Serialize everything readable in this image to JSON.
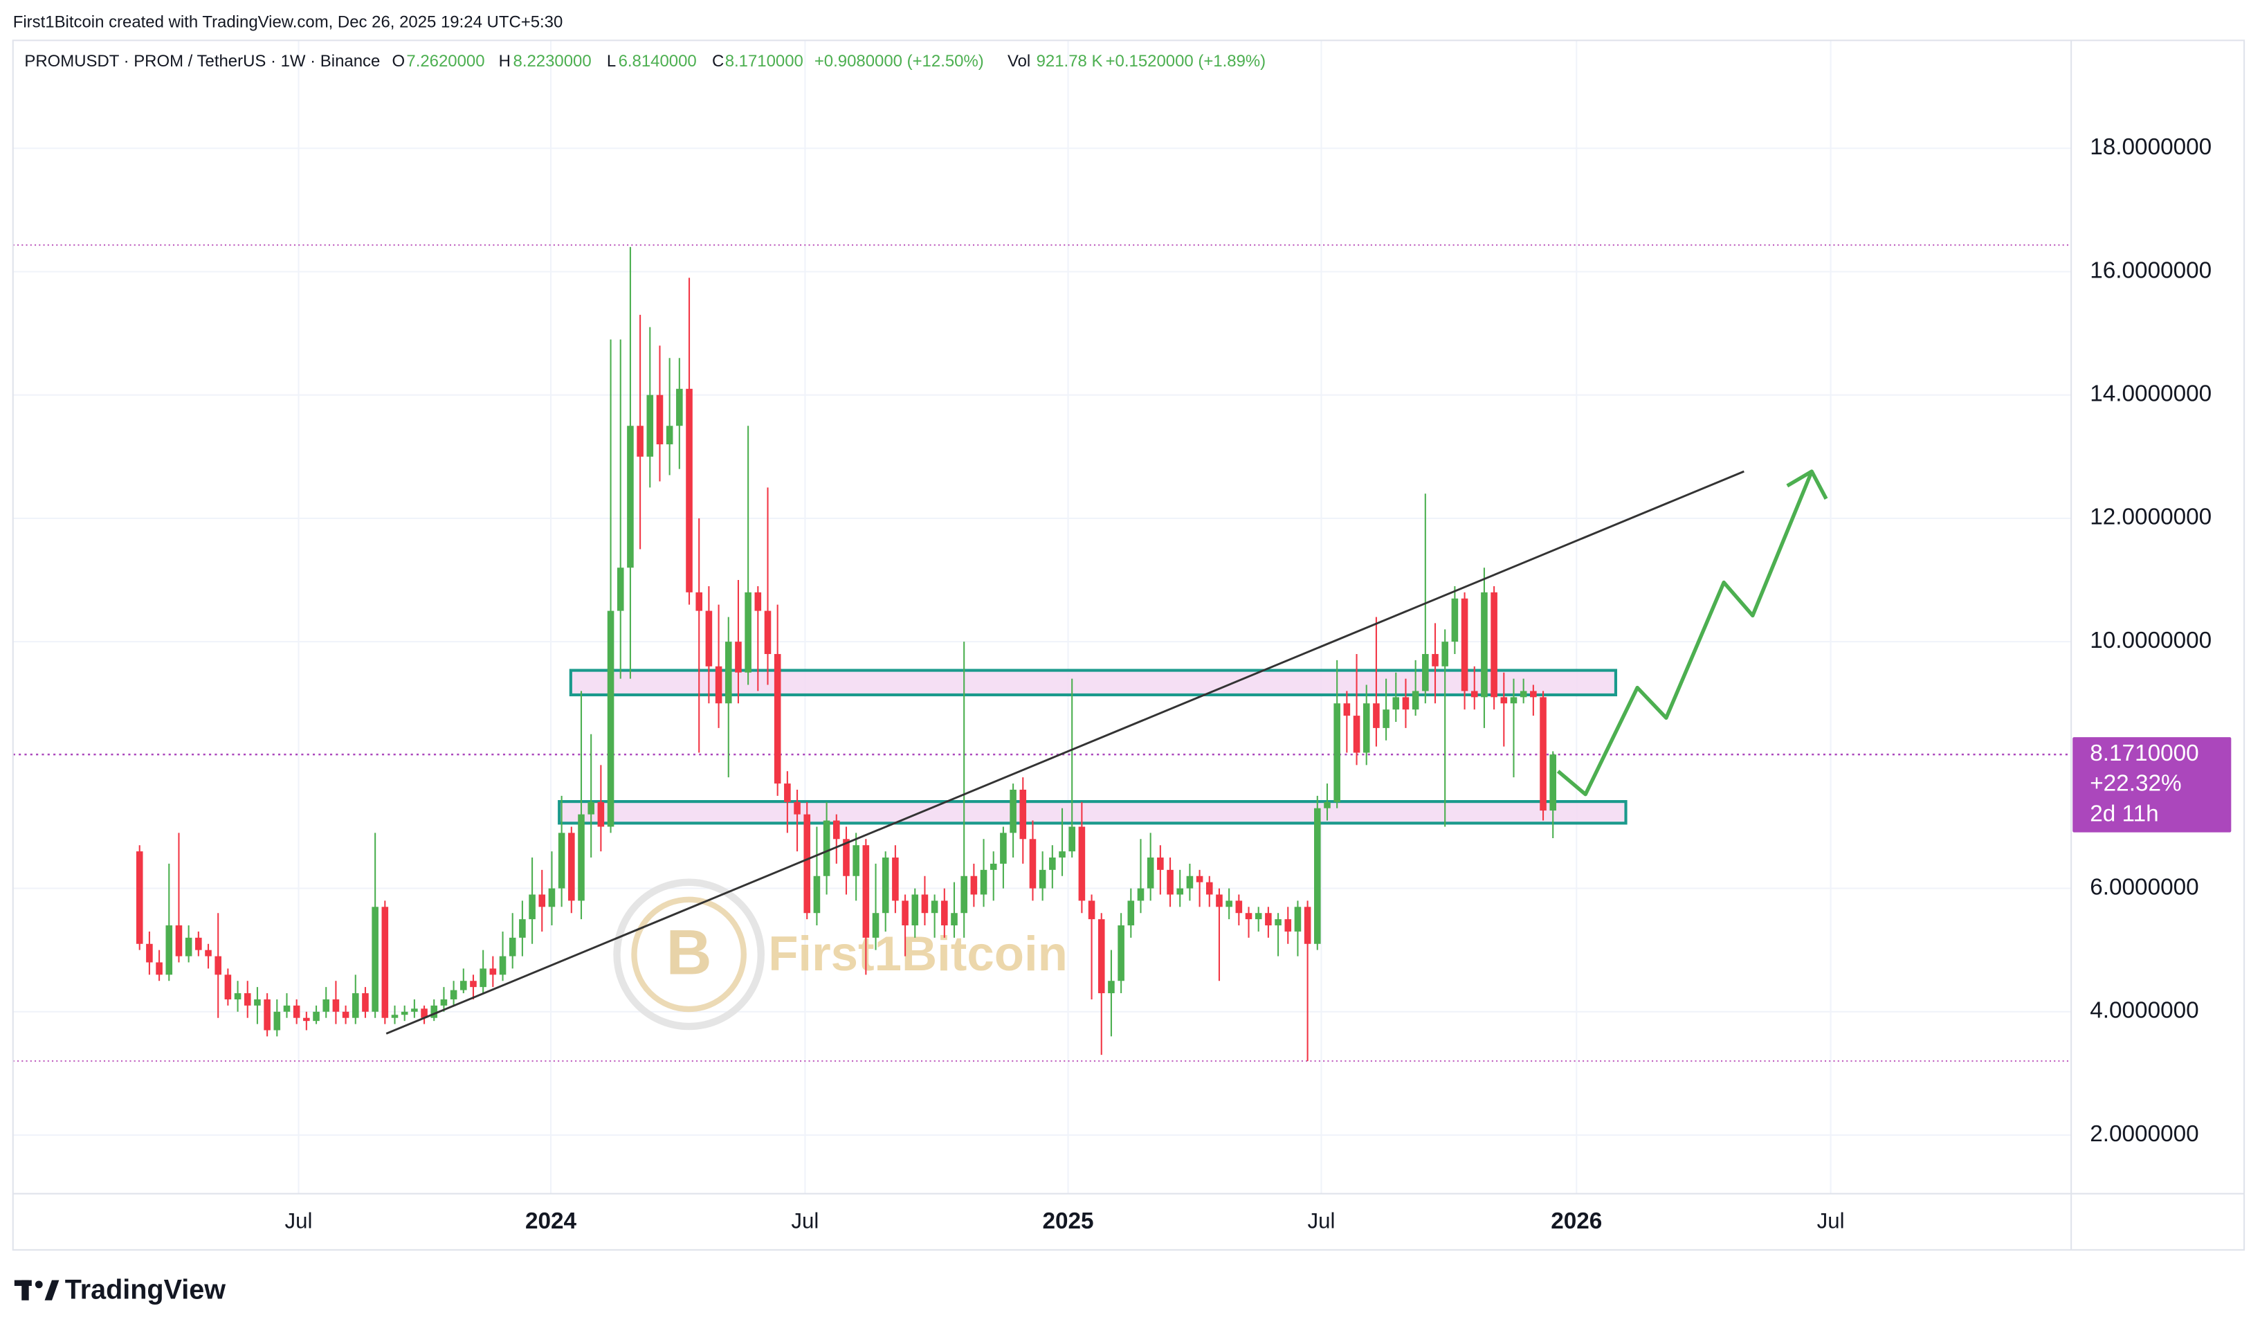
{
  "header": {
    "credit": "First1Bitcoin created with TradingView.com, Dec 26, 2025 19:24 UTC+5:30",
    "symbol": "PROMUSDT · PROM / TetherUS · 1W · Binance",
    "ohlc": [
      {
        "key": "O",
        "value": "7.2620000"
      },
      {
        "key": "H",
        "value": "8.2230000"
      },
      {
        "key": "L",
        "value": "6.8140000"
      },
      {
        "key": "C",
        "value": "8.1710000"
      }
    ],
    "change": "+0.9080000 (+12.50%)",
    "volume": {
      "key": "Vol",
      "value": "921.78 K",
      "change": "+0.1520000 (+1.89%)"
    }
  },
  "watermark": "First1Bitcoin",
  "footer": {
    "logo": "TradingView"
  },
  "chart_data": {
    "type": "candlestick",
    "categories": [
      null,
      null,
      null,
      null,
      null,
      null,
      null,
      null,
      null,
      null,
      null,
      null,
      null,
      null,
      null,
      null,
      null,
      null,
      null,
      null,
      null,
      null,
      null,
      null,
      null,
      null,
      null,
      null,
      null,
      null,
      null,
      null,
      null,
      null,
      null,
      null,
      null,
      null,
      null,
      null,
      null,
      null,
      null,
      null,
      null,
      null,
      null,
      null,
      null,
      null,
      null,
      null,
      null,
      null,
      null,
      null,
      null,
      null,
      null,
      null,
      null,
      null,
      null,
      null,
      null,
      null,
      null,
      null,
      null,
      null,
      null,
      null,
      null,
      null,
      null,
      null,
      null,
      null,
      null,
      null,
      null,
      null,
      null,
      null,
      null,
      null,
      null,
      null,
      null,
      null,
      null,
      null,
      null,
      null,
      null,
      null,
      null,
      null,
      null,
      null,
      null,
      null,
      null,
      null,
      null,
      null,
      null,
      null,
      null,
      null,
      null,
      null,
      null,
      null,
      null,
      null,
      null,
      null,
      null,
      null,
      null,
      null,
      null,
      null,
      null,
      null,
      null,
      null,
      null,
      null,
      null,
      null,
      null,
      null,
      null,
      null,
      null,
      null,
      null,
      null,
      null,
      null,
      null,
      null,
      null
    ],
    "open": [
      6.6,
      5.1,
      4.8,
      4.6,
      5.4,
      4.9,
      5.2,
      5.0,
      4.9,
      4.6,
      4.2,
      4.3,
      4.1,
      4.2,
      3.7,
      4.0,
      4.1,
      3.9,
      3.85,
      4.0,
      4.2,
      4.0,
      3.9,
      4.3,
      4.0,
      5.7,
      3.9,
      3.95,
      4.0,
      4.05,
      3.9,
      4.1,
      4.2,
      4.35,
      4.5,
      4.4,
      4.7,
      4.6,
      4.9,
      5.2,
      5.5,
      5.9,
      5.7,
      6.0,
      6.9,
      5.8,
      7.2,
      7.4,
      7.0,
      10.5,
      11.2,
      13.5,
      13.0,
      14.0,
      13.2,
      13.5,
      14.1,
      10.8,
      10.5,
      9.6,
      9.0,
      10.0,
      9.5,
      10.8,
      10.5,
      9.8,
      7.7,
      7.4,
      7.2,
      5.6,
      6.2,
      7.1,
      6.8,
      6.2,
      6.7,
      5.2,
      5.6,
      6.5,
      5.8,
      5.4,
      5.9,
      5.6,
      5.8,
      5.4,
      5.6,
      6.2,
      5.9,
      6.3,
      6.4,
      6.9,
      7.6,
      6.8,
      6.0,
      6.3,
      6.5,
      6.6,
      7.0,
      5.8,
      5.5,
      4.3,
      4.5,
      5.4,
      5.8,
      6.0,
      6.5,
      6.3,
      5.9,
      6.0,
      6.2,
      6.1,
      5.9,
      5.7,
      5.8,
      5.6,
      5.5,
      5.6,
      5.4,
      5.5,
      5.3,
      5.7,
      5.1,
      7.3,
      7.4,
      9.0,
      8.8,
      8.2,
      9.0,
      8.6,
      8.9,
      9.1,
      8.9,
      9.2,
      9.8,
      9.6,
      10.0,
      10.7,
      9.2,
      9.1,
      10.8,
      9.1,
      9.0,
      9.1,
      9.2,
      9.1,
      7.262
    ],
    "high": [
      6.7,
      5.3,
      5.0,
      6.4,
      6.9,
      5.4,
      5.3,
      5.1,
      5.6,
      4.7,
      4.5,
      4.5,
      4.4,
      4.3,
      4.2,
      4.3,
      4.2,
      4.0,
      4.1,
      4.4,
      4.5,
      4.1,
      4.6,
      4.4,
      6.9,
      5.8,
      4.1,
      4.1,
      4.2,
      4.1,
      4.2,
      4.4,
      4.5,
      4.7,
      4.6,
      5.0,
      4.9,
      5.3,
      5.6,
      5.8,
      6.5,
      6.3,
      6.6,
      7.5,
      7.0,
      9.2,
      8.5,
      8.0,
      14.9,
      14.9,
      16.4,
      15.3,
      15.1,
      14.8,
      14.6,
      14.6,
      15.9,
      12.0,
      10.9,
      10.6,
      10.4,
      11.0,
      13.5,
      10.9,
      12.5,
      10.6,
      7.9,
      7.6,
      7.4,
      7.0,
      7.4,
      7.2,
      7.0,
      6.9,
      6.8,
      6.4,
      6.6,
      6.7,
      5.9,
      6.0,
      6.2,
      5.9,
      6.0,
      6.1,
      10.0,
      6.4,
      6.8,
      6.6,
      7.0,
      7.7,
      7.8,
      7.1,
      6.6,
      6.7,
      7.3,
      9.4,
      7.4,
      5.9,
      5.6,
      5.0,
      5.6,
      6.0,
      6.8,
      6.9,
      6.7,
      6.5,
      6.3,
      6.4,
      6.3,
      6.2,
      6.0,
      6.0,
      5.9,
      5.7,
      5.7,
      5.7,
      5.6,
      5.7,
      5.8,
      5.8,
      7.5,
      7.7,
      9.7,
      9.2,
      9.8,
      9.3,
      10.4,
      9.4,
      9.5,
      9.4,
      9.7,
      12.4,
      10.3,
      10.2,
      10.9,
      10.8,
      9.6,
      11.2,
      10.9,
      9.5,
      9.4,
      9.4,
      9.3,
      9.2,
      8.223
    ],
    "low": [
      5.0,
      4.6,
      4.5,
      4.5,
      4.8,
      4.8,
      4.9,
      4.7,
      3.9,
      4.1,
      4.0,
      3.9,
      3.8,
      3.6,
      3.6,
      3.9,
      3.8,
      3.7,
      3.8,
      3.9,
      3.8,
      3.8,
      3.8,
      3.9,
      3.9,
      3.8,
      3.8,
      3.85,
      3.9,
      3.8,
      3.85,
      4.0,
      4.1,
      4.3,
      4.2,
      4.3,
      4.4,
      4.5,
      4.7,
      4.9,
      5.1,
      5.3,
      5.4,
      5.7,
      5.6,
      5.5,
      6.5,
      6.6,
      6.9,
      9.4,
      9.4,
      11.5,
      12.5,
      12.6,
      12.7,
      12.8,
      10.6,
      8.2,
      9.0,
      8.6,
      7.8,
      9.0,
      9.3,
      9.2,
      9.3,
      7.5,
      6.9,
      6.6,
      5.5,
      5.4,
      5.9,
      6.4,
      5.9,
      5.8,
      4.6,
      5.0,
      5.3,
      5.6,
      4.9,
      5.2,
      5.4,
      5.2,
      5.2,
      5.2,
      5.2,
      5.7,
      5.7,
      5.8,
      6.0,
      6.5,
      6.4,
      5.8,
      5.8,
      6.0,
      6.2,
      6.5,
      5.6,
      4.2,
      3.3,
      3.6,
      4.3,
      5.2,
      5.6,
      5.8,
      5.9,
      5.7,
      5.7,
      5.8,
      5.7,
      5.7,
      4.5,
      5.5,
      5.4,
      5.2,
      5.3,
      5.2,
      4.9,
      5.1,
      4.9,
      3.2,
      5.0,
      7.1,
      7.3,
      8.2,
      8.0,
      8.0,
      8.3,
      8.4,
      8.7,
      8.6,
      8.8,
      9.0,
      9.0,
      7.0,
      9.8,
      8.9,
      8.9,
      8.6,
      8.9,
      8.3,
      7.8,
      9.0,
      8.8,
      7.1,
      6.814
    ],
    "close": [
      5.1,
      4.8,
      4.6,
      5.4,
      4.9,
      5.2,
      5.0,
      4.9,
      4.6,
      4.2,
      4.3,
      4.1,
      4.2,
      3.7,
      4.0,
      4.1,
      3.9,
      3.85,
      4.0,
      4.2,
      4.0,
      3.9,
      4.3,
      4.0,
      5.7,
      3.9,
      3.95,
      4.0,
      4.05,
      3.9,
      4.1,
      4.2,
      4.35,
      4.5,
      4.4,
      4.7,
      4.6,
      4.9,
      5.2,
      5.5,
      5.9,
      5.7,
      6.0,
      6.9,
      5.8,
      7.2,
      7.4,
      7.0,
      10.5,
      11.2,
      13.5,
      13.0,
      14.0,
      13.2,
      13.5,
      14.1,
      10.8,
      10.5,
      9.6,
      9.0,
      10.0,
      9.5,
      10.8,
      10.5,
      9.8,
      7.7,
      7.4,
      7.2,
      5.6,
      6.2,
      7.1,
      6.8,
      6.2,
      6.7,
      5.2,
      5.6,
      6.5,
      5.8,
      5.4,
      5.9,
      5.6,
      5.8,
      5.4,
      5.6,
      6.2,
      5.9,
      6.3,
      6.4,
      6.9,
      7.6,
      6.8,
      6.0,
      6.3,
      6.5,
      6.6,
      7.0,
      5.8,
      5.5,
      4.3,
      4.5,
      5.4,
      5.8,
      6.0,
      6.5,
      6.3,
      5.9,
      6.0,
      6.2,
      6.1,
      5.9,
      5.7,
      5.8,
      5.6,
      5.5,
      5.6,
      5.4,
      5.5,
      5.3,
      5.7,
      5.1,
      7.3,
      7.4,
      9.0,
      8.8,
      8.2,
      9.0,
      8.6,
      8.9,
      9.1,
      8.9,
      9.2,
      9.8,
      9.6,
      10.0,
      10.7,
      9.2,
      9.1,
      10.8,
      9.1,
      9.0,
      9.1,
      9.2,
      9.1,
      7.262,
      8.171
    ],
    "up_color": "#4caf50",
    "down_color": "#f23645",
    "xlim": [
      -12.9,
      196.8
    ],
    "xticks": [
      {
        "value": 16.2,
        "label": "Jul"
      },
      {
        "value": 41.9,
        "label": "2024"
      },
      {
        "value": 67.8,
        "label": "Jul"
      },
      {
        "value": 94.6,
        "label": "2025"
      },
      {
        "value": 120.4,
        "label": "Jul"
      },
      {
        "value": 146.4,
        "label": "2026"
      },
      {
        "value": 172.3,
        "label": "Jul"
      }
    ],
    "ylim": [
      1.05,
      19.75
    ],
    "yticks": [
      {
        "value": 2,
        "label": "2.0000000"
      },
      {
        "value": 4,
        "label": "4.0000000"
      },
      {
        "value": 6,
        "label": "6.0000000"
      },
      {
        "value": 10,
        "label": "10.0000000"
      },
      {
        "value": 12,
        "label": "12.0000000"
      },
      {
        "value": 14,
        "label": "14.0000000"
      },
      {
        "value": 16,
        "label": "16.0000000"
      },
      {
        "value": 18,
        "label": "18.0000000"
      }
    ],
    "grid": true,
    "last_price": {
      "value": 8.171,
      "label": "8.1710000",
      "change": "+22.32%",
      "countdown": "2d 11h",
      "color": "#ab47bc"
    }
  }
}
